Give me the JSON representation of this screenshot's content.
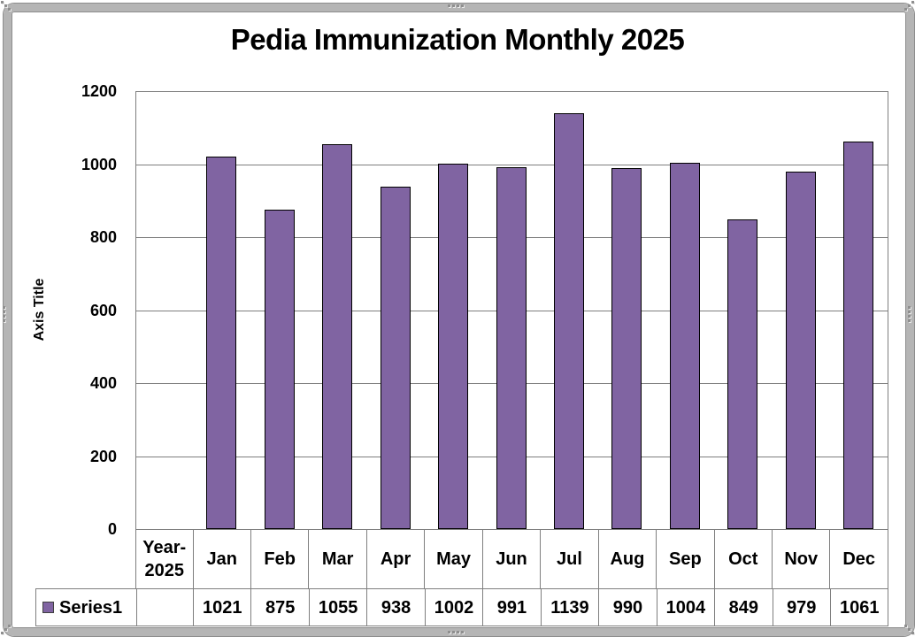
{
  "chart_data": {
    "type": "bar",
    "title": "Pedia Immunization Monthly 2025",
    "ylabel": "Axis Title",
    "x_axis_group_label": "Year-2025",
    "categories": [
      "Jan",
      "Feb",
      "Mar",
      "Apr",
      "May",
      "Jun",
      "Jul",
      "Aug",
      "Sep",
      "Oct",
      "Nov",
      "Dec"
    ],
    "series": [
      {
        "name": "Series1",
        "values": [
          1021,
          875,
          1055,
          938,
          1002,
          991,
          1139,
          990,
          1004,
          849,
          979,
          1061
        ]
      }
    ],
    "ylim": [
      0,
      1200
    ],
    "yticks": [
      0,
      200,
      400,
      600,
      800,
      1000,
      1200
    ],
    "grid": true,
    "legend_position": "data-table-left",
    "data_table_shown": true,
    "colors": {
      "bar_fill": "#8064A2",
      "bar_border": "#000000",
      "gridline": "#7F7F7F",
      "table_border": "#7F7F7F",
      "frame": "#B5B5B5",
      "text": "#000000"
    }
  }
}
